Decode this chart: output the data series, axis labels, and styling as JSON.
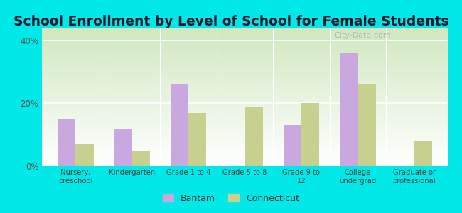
{
  "title": "School Enrollment by Level of School for Female Students",
  "categories": [
    "Nursery,\npreschool",
    "Kindergarten",
    "Grade 1 to 4",
    "Grade 5 to 8",
    "Grade 9 to\n12",
    "College\nundergrad",
    "Graduate or\nprofessional"
  ],
  "bantam": [
    15,
    12,
    26,
    0,
    13,
    36,
    0
  ],
  "connecticut": [
    7,
    5,
    17,
    19,
    20,
    26,
    8
  ],
  "bantam_color": "#c9a8e0",
  "connecticut_color": "#c8d090",
  "background_color": "#00e8e8",
  "ylim": [
    0,
    44
  ],
  "yticks": [
    0,
    20,
    40
  ],
  "ytick_labels": [
    "0%",
    "20%",
    "40%"
  ],
  "legend_labels": [
    "Bantam",
    "Connecticut"
  ],
  "bar_width": 0.32,
  "title_fontsize": 13.5,
  "watermark": "City-Data.com"
}
